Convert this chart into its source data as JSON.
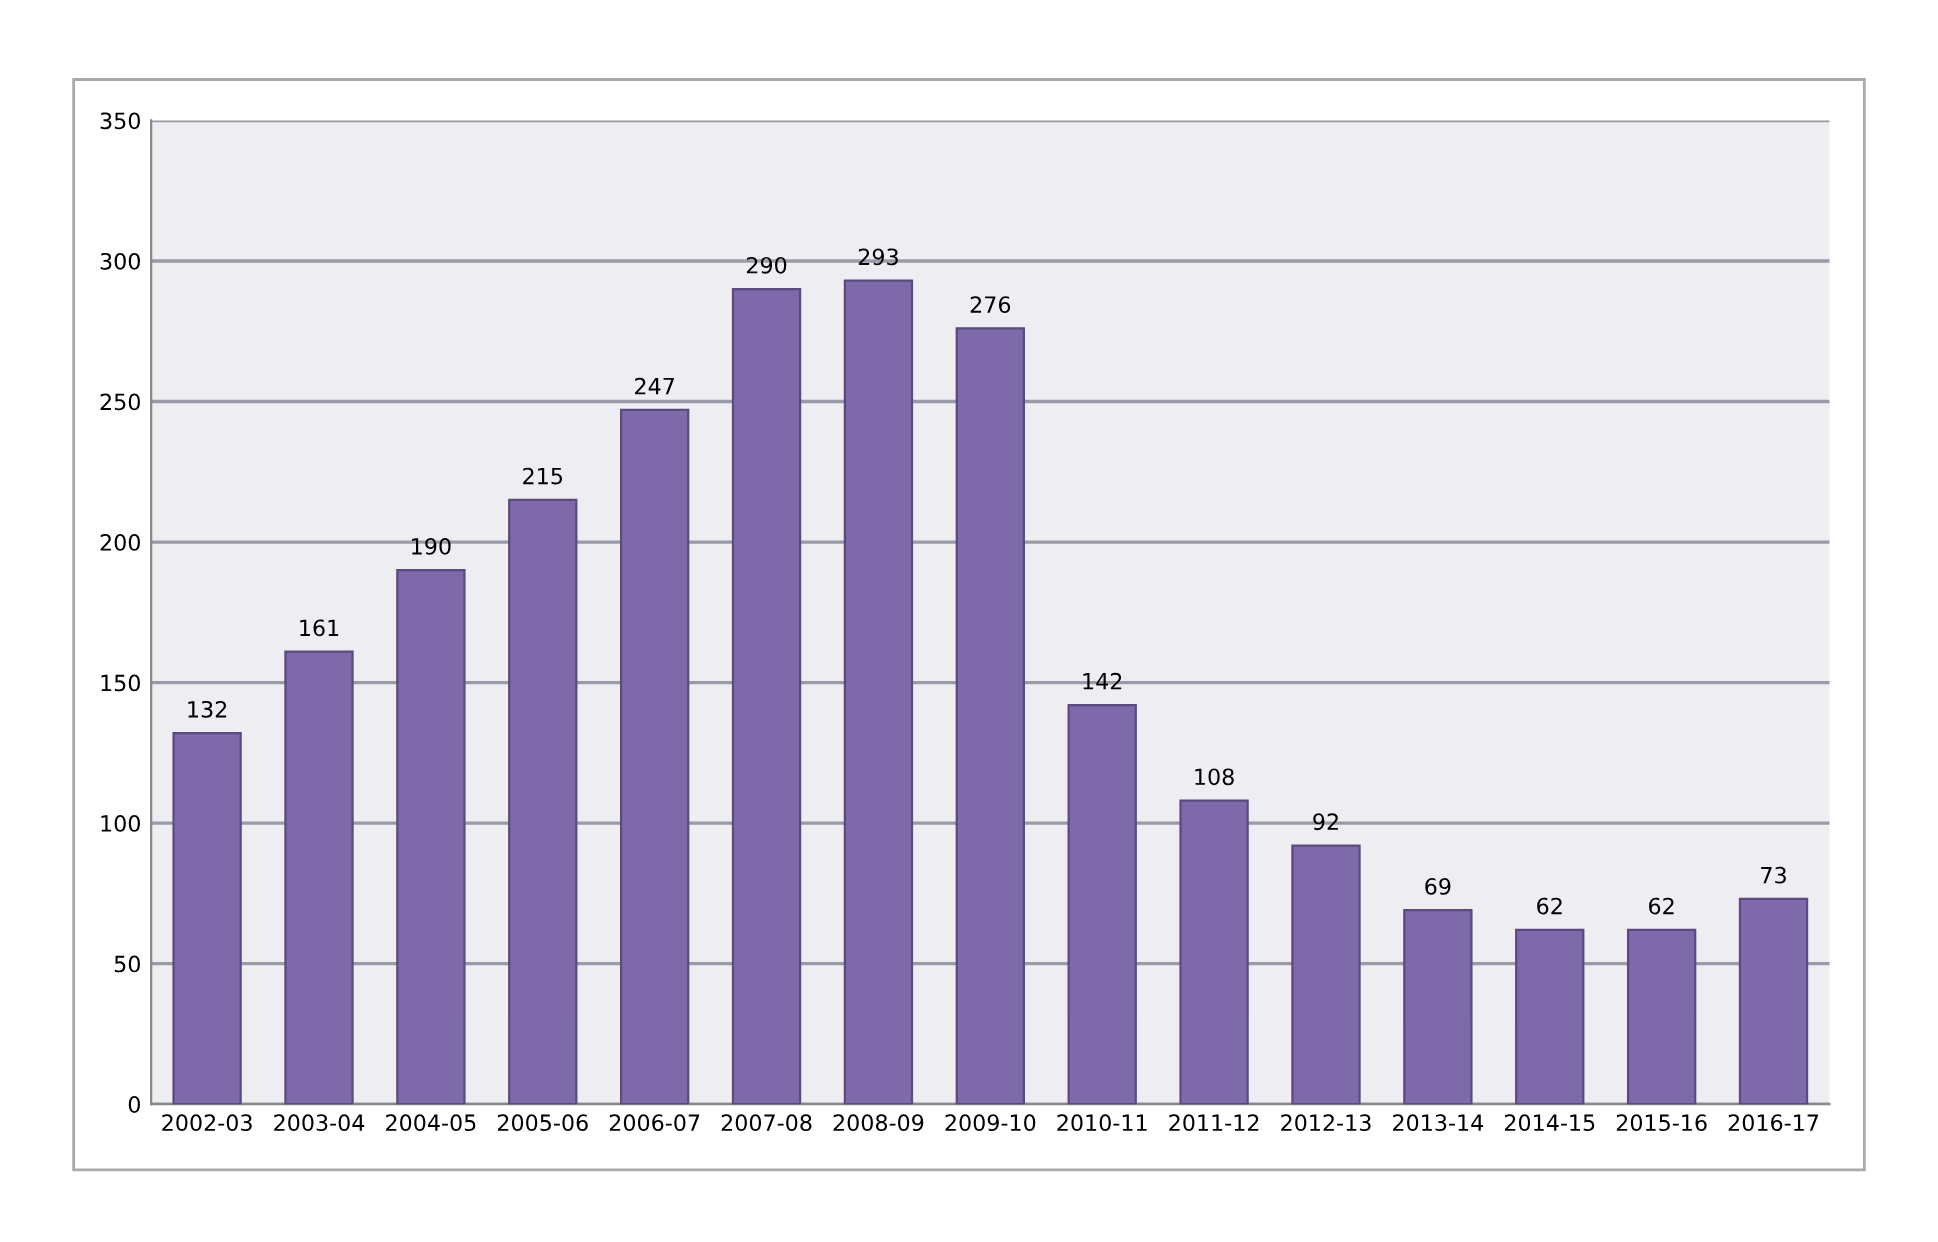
{
  "chart_data": {
    "type": "bar",
    "categories": [
      "2002-03",
      "2003-04",
      "2004-05",
      "2005-06",
      "2006-07",
      "2007-08",
      "2008-09",
      "2009-10",
      "2010-11",
      "2011-12",
      "2012-13",
      "2013-14",
      "2014-15",
      "2015-16",
      "2016-17"
    ],
    "values": [
      132,
      161,
      190,
      215,
      247,
      290,
      293,
      276,
      142,
      108,
      92,
      69,
      62,
      62,
      73
    ],
    "color": "#7e6aaa",
    "ylim": [
      0,
      350
    ],
    "yticks": [
      0,
      50,
      100,
      150,
      200,
      250,
      300,
      350
    ],
    "grid": "y",
    "data_labels": true
  }
}
